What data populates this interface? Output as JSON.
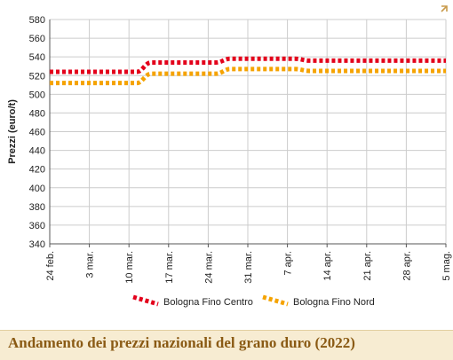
{
  "footer": {
    "title": "Andamento dei prezzi nazionali del grano duro (2022)"
  },
  "colors": {
    "series_centro": "#e3001b",
    "series_nord": "#f5a300",
    "grid": "#cccccc",
    "footer_bg": "#f7ecd2",
    "footer_text": "#8a5a14"
  },
  "icons": {
    "corner": "corner-arrow-icon"
  },
  "chart_data": {
    "type": "line",
    "title": "",
    "ylabel": "Prezzi (euro/t)",
    "xlabel": "",
    "ylim": [
      340,
      580
    ],
    "yticks": [
      340,
      360,
      380,
      400,
      420,
      440,
      460,
      480,
      500,
      520,
      540,
      560,
      580
    ],
    "categories": [
      "24 feb.",
      "3 mar.",
      "10 mar.",
      "17 mar.",
      "24 mar.",
      "31 mar.",
      "7 apr.",
      "14 apr.",
      "21 apr.",
      "28 apr.",
      "5 mag."
    ],
    "grid": true,
    "legend_position": "bottom",
    "series": [
      {
        "name": "Bologna Fino Centro",
        "color": "#e3001b",
        "values": [
          524,
          524,
          524,
          534,
          534,
          538,
          538,
          536,
          536,
          536,
          536
        ]
      },
      {
        "name": "Bologna Fino Nord",
        "color": "#f5a300",
        "values": [
          512,
          512,
          512,
          522,
          522,
          527,
          527,
          525,
          525,
          525,
          525
        ]
      }
    ]
  }
}
